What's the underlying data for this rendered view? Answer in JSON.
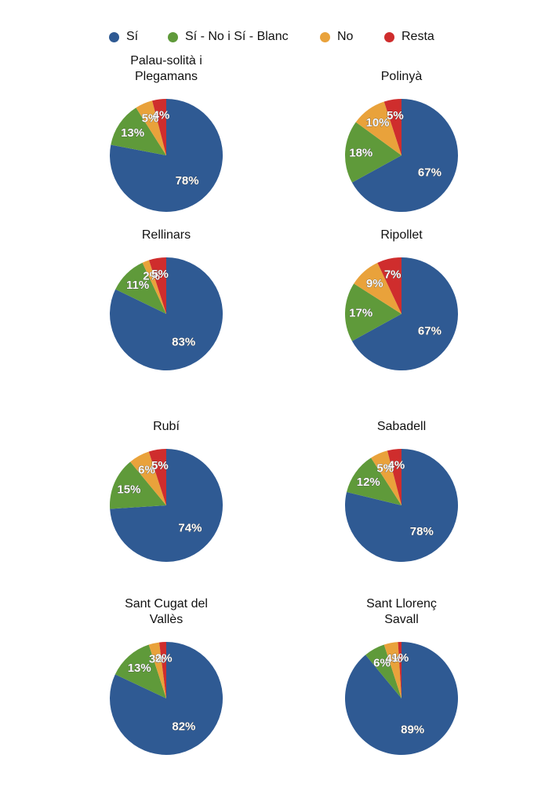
{
  "legend": [
    {
      "label": "Sí",
      "color": "#2f5a93"
    },
    {
      "label": "Sí - No i Sí - Blanc",
      "color": "#5f9a3a"
    },
    {
      "label": "No",
      "color": "#e9a23b"
    },
    {
      "label": "Resta",
      "color": "#cf2d2d"
    }
  ],
  "chart_data": [
    {
      "type": "pie",
      "title": [
        "Palau-solità i",
        "Plegamans"
      ],
      "categories": [
        "Sí",
        "Sí - No i Sí - Blanc",
        "No",
        "Resta"
      ],
      "values": [
        78,
        13,
        5,
        4
      ],
      "labels": [
        "78%",
        "13%",
        "5%",
        "4%"
      ]
    },
    {
      "type": "pie",
      "title": [
        "Polinyà"
      ],
      "categories": [
        "Sí",
        "Sí - No i Sí - Blanc",
        "No",
        "Resta"
      ],
      "values": [
        67,
        18,
        10,
        5
      ],
      "labels": [
        "67%",
        "18%",
        "10%",
        "5%"
      ]
    },
    {
      "type": "pie",
      "title": [
        "Rellinars"
      ],
      "categories": [
        "Sí",
        "Sí - No i Sí - Blanc",
        "No",
        "Resta"
      ],
      "values": [
        83,
        11,
        2,
        5
      ],
      "labels": [
        "83%",
        "11%",
        "2%",
        "5%"
      ]
    },
    {
      "type": "pie",
      "title": [
        "Ripollet"
      ],
      "categories": [
        "Sí",
        "Sí - No i Sí - Blanc",
        "No",
        "Resta"
      ],
      "values": [
        67,
        17,
        9,
        7
      ],
      "labels": [
        "67%",
        "17%",
        "9%",
        "7%"
      ]
    },
    {
      "type": "pie",
      "title": [
        "Rubí"
      ],
      "categories": [
        "Sí",
        "Sí - No i Sí - Blanc",
        "No",
        "Resta"
      ],
      "values": [
        74,
        15,
        6,
        5
      ],
      "labels": [
        "74%",
        "15%",
        "6%",
        "5%"
      ]
    },
    {
      "type": "pie",
      "title": [
        "Sabadell"
      ],
      "categories": [
        "Sí",
        "Sí - No i Sí - Blanc",
        "No",
        "Resta"
      ],
      "values": [
        78,
        12,
        5,
        4
      ],
      "labels": [
        "78%",
        "12%",
        "5%",
        "4%"
      ]
    },
    {
      "type": "pie",
      "title": [
        "Sant Cugat del",
        "Vallès"
      ],
      "categories": [
        "Sí",
        "Sí - No i Sí - Blanc",
        "No",
        "Resta"
      ],
      "values": [
        82,
        13,
        3,
        2
      ],
      "labels": [
        "82%",
        "13%",
        "3%",
        "2%"
      ]
    },
    {
      "type": "pie",
      "title": [
        "Sant Llorenç",
        "Savall"
      ],
      "categories": [
        "Sí",
        "Sí - No i Sí - Blanc",
        "No",
        "Resta"
      ],
      "values": [
        89,
        6,
        4,
        1
      ],
      "labels": [
        "89%",
        "6%",
        "4%",
        "1%"
      ]
    }
  ]
}
